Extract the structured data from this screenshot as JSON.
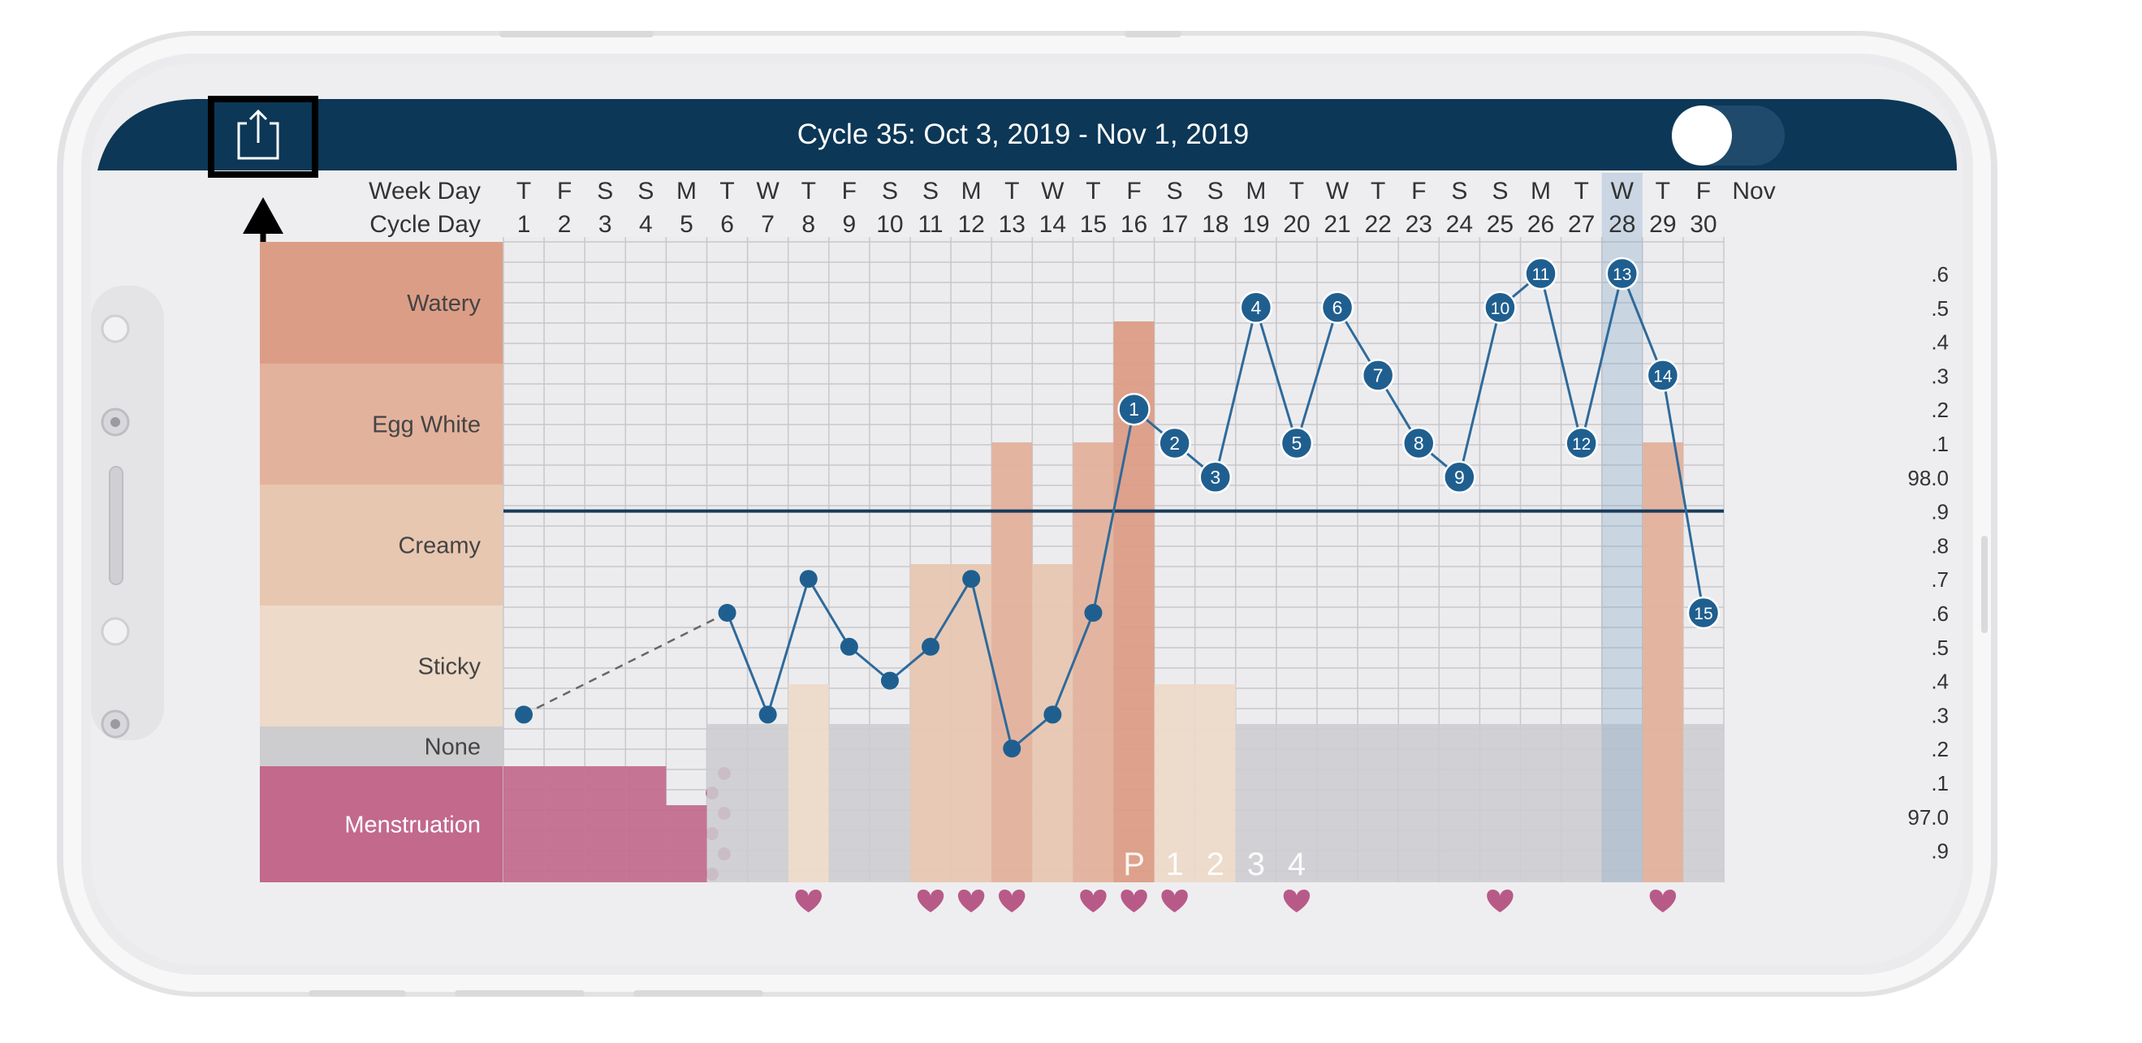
{
  "header": {
    "title": "Cycle 35: Oct 3, 2019 - Nov 1, 2019",
    "bar_color": "#0c3756",
    "toggle_on": false
  },
  "row_labels": {
    "week_day": "Week Day",
    "cycle_day": "Cycle Day"
  },
  "week_days": [
    "T",
    "F",
    "S",
    "S",
    "M",
    "T",
    "W",
    "T",
    "F",
    "S",
    "S",
    "M",
    "T",
    "W",
    "T",
    "F",
    "S",
    "S",
    "M",
    "T",
    "W",
    "T",
    "F",
    "S",
    "S",
    "M",
    "T",
    "W",
    "T",
    "F"
  ],
  "cycle_days": [
    "1",
    "2",
    "3",
    "4",
    "5",
    "6",
    "7",
    "8",
    "9",
    "10",
    "11",
    "12",
    "13",
    "14",
    "15",
    "16",
    "17",
    "18",
    "19",
    "20",
    "21",
    "22",
    "23",
    "24",
    "25",
    "26",
    "27",
    "28",
    "29",
    "30"
  ],
  "next_month_label": "Nov",
  "highlight_day": 28,
  "categories": [
    {
      "label": "Watery",
      "color": "#dc9d86"
    },
    {
      "label": "Egg White",
      "color": "#e3b29c"
    },
    {
      "label": "Creamy",
      "color": "#e8c7b1"
    },
    {
      "label": "Sticky",
      "color": "#eddac9"
    },
    {
      "label": "None",
      "color": "#cdcdd0"
    },
    {
      "label": "Menstruation",
      "color": "#c2698c"
    }
  ],
  "temp_axis_labels": [
    ".6",
    ".5",
    ".4",
    ".3",
    ".2",
    ".1",
    "98.0",
    ".9",
    ".8",
    ".7",
    ".6",
    ".5",
    ".4",
    ".3",
    ".2",
    ".1",
    "97.0",
    ".9"
  ],
  "chart_data": {
    "type": "line",
    "x": [
      1,
      6,
      7,
      8,
      9,
      10,
      11,
      12,
      13,
      14,
      15,
      16,
      17,
      18,
      19,
      20,
      21,
      22,
      23,
      24,
      25,
      26,
      27,
      28,
      29,
      30
    ],
    "temperatures": [
      97.3,
      97.6,
      97.3,
      97.7,
      97.5,
      97.4,
      97.5,
      97.7,
      97.2,
      97.3,
      97.6,
      98.2,
      98.1,
      98.0,
      98.5,
      98.1,
      98.5,
      98.3,
      98.1,
      98.0,
      98.5,
      98.6,
      98.1,
      98.6,
      98.3,
      97.6
    ],
    "dashed_segment_x": [
      1,
      6
    ],
    "point_labels": [
      "",
      "",
      "",
      "",
      "",
      "",
      "",
      "",
      "",
      "",
      "",
      "1",
      "2",
      "3",
      "4",
      "5",
      "6",
      "7",
      "8",
      "9",
      "10",
      "11",
      "12",
      "13",
      "14",
      "15"
    ],
    "coverline": 97.9,
    "ylim": [
      96.85,
      98.7
    ],
    "mucus_days": [
      6,
      7,
      8,
      9,
      10,
      11,
      12,
      13,
      14,
      15,
      16,
      17,
      18,
      19,
      20,
      21,
      22,
      23,
      24,
      25,
      26,
      27,
      28,
      29,
      30
    ],
    "mucus_levels": [
      "None",
      "None",
      "Sticky",
      "None",
      "None",
      "Creamy",
      "Creamy",
      "Egg White",
      "Creamy",
      "Egg White",
      "Watery",
      "Sticky",
      "Sticky",
      "None",
      "None",
      "None",
      "None",
      "None",
      "None",
      "None",
      "None",
      "None",
      "None",
      "Egg White",
      "None"
    ],
    "menstruation_days": [
      1,
      2,
      3,
      4,
      5
    ],
    "menstruation_levels": [
      "heavy",
      "heavy",
      "heavy",
      "heavy",
      "medium"
    ],
    "spotting_day": 6,
    "intercourse_days": [
      8,
      11,
      12,
      13,
      15,
      16,
      17,
      20,
      25,
      29
    ],
    "peak_labels": [
      {
        "day": 16,
        "label": "P"
      },
      {
        "day": 17,
        "label": "1"
      },
      {
        "day": 18,
        "label": "2"
      },
      {
        "day": 19,
        "label": "3"
      },
      {
        "day": 20,
        "label": "4"
      }
    ],
    "line_color": "#2e6a9b",
    "point_color": "#1f5f8f",
    "heart_color": "#b85a88"
  }
}
